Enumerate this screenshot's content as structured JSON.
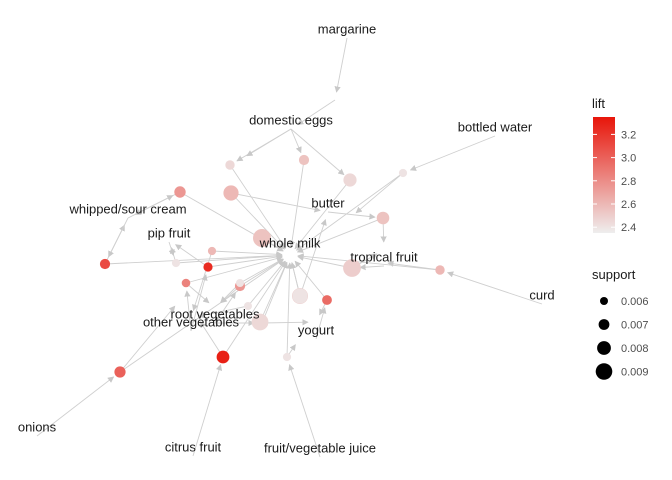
{
  "chart_data": {
    "type": "network",
    "item_nodes": [
      {
        "id": "margarine",
        "label": "margarine"
      },
      {
        "id": "domestic eggs",
        "label": "domestic eggs"
      },
      {
        "id": "bottled water",
        "label": "bottled water"
      },
      {
        "id": "whipped/sour cream",
        "label": "whipped/sour cream"
      },
      {
        "id": "butter",
        "label": "butter"
      },
      {
        "id": "pip fruit",
        "label": "pip fruit"
      },
      {
        "id": "whole milk",
        "label": "whole milk"
      },
      {
        "id": "tropical fruit",
        "label": "tropical fruit"
      },
      {
        "id": "curd",
        "label": "curd"
      },
      {
        "id": "root vegetables",
        "label": "root vegetables"
      },
      {
        "id": "other vegetables",
        "label": "other vegetables"
      },
      {
        "id": "yogurt",
        "label": "yogurt"
      },
      {
        "id": "onions",
        "label": "onions"
      },
      {
        "id": "citrus fruit",
        "label": "citrus fruit"
      },
      {
        "id": "fruit/vegetable juice",
        "label": "fruit/vegetable juice"
      }
    ],
    "rule_nodes": [
      {
        "lift": 2.45,
        "support": 0.0065
      },
      {
        "lift": 2.55,
        "support": 0.0068
      },
      {
        "lift": 2.4,
        "support": 0.0061
      },
      {
        "lift": 2.75,
        "support": 0.0072
      },
      {
        "lift": 2.6,
        "support": 0.0085
      },
      {
        "lift": 2.45,
        "support": 0.0078
      },
      {
        "lift": 2.55,
        "support": 0.0076
      },
      {
        "lift": 2.85,
        "support": 0.0062
      },
      {
        "lift": 2.5,
        "support": 0.0094
      },
      {
        "lift": 2.4,
        "support": 0.0061
      },
      {
        "lift": 3.1,
        "support": 0.0068
      },
      {
        "lift": 3.25,
        "support": 0.0064
      },
      {
        "lift": 2.95,
        "support": 0.0066
      },
      {
        "lift": 2.6,
        "support": 0.0065
      },
      {
        "lift": 2.5,
        "support": 0.0088
      },
      {
        "lift": 2.55,
        "support": 0.0095
      },
      {
        "lift": 2.75,
        "support": 0.0068
      },
      {
        "lift": 2.85,
        "support": 0.0074
      },
      {
        "lift": 2.45,
        "support": 0.0091
      },
      {
        "lift": 2.4,
        "support": 0.0085
      },
      {
        "lift": 2.6,
        "support": 0.0061
      },
      {
        "lift": 3.0,
        "support": 0.0071
      },
      {
        "lift": 3.3,
        "support": 0.0077
      },
      {
        "lift": 2.4,
        "support": 0.006
      },
      {
        "lift": 2.4,
        "support": 0.0061
      },
      {
        "lift": 2.4,
        "support": 0.006
      }
    ],
    "legend": {
      "lift": {
        "title": "lift",
        "ticks": [
          "3.2",
          "3.0",
          "2.8",
          "2.6",
          "2.4"
        ],
        "min": 2.35,
        "max": 3.35,
        "low_color": "#EEEEEE",
        "high_color": "#E8150A"
      },
      "support": {
        "title": "support",
        "items": [
          "0.006",
          "0.007",
          "0.008",
          "0.009"
        ]
      }
    },
    "legend_placement": "right",
    "grid": false
  }
}
